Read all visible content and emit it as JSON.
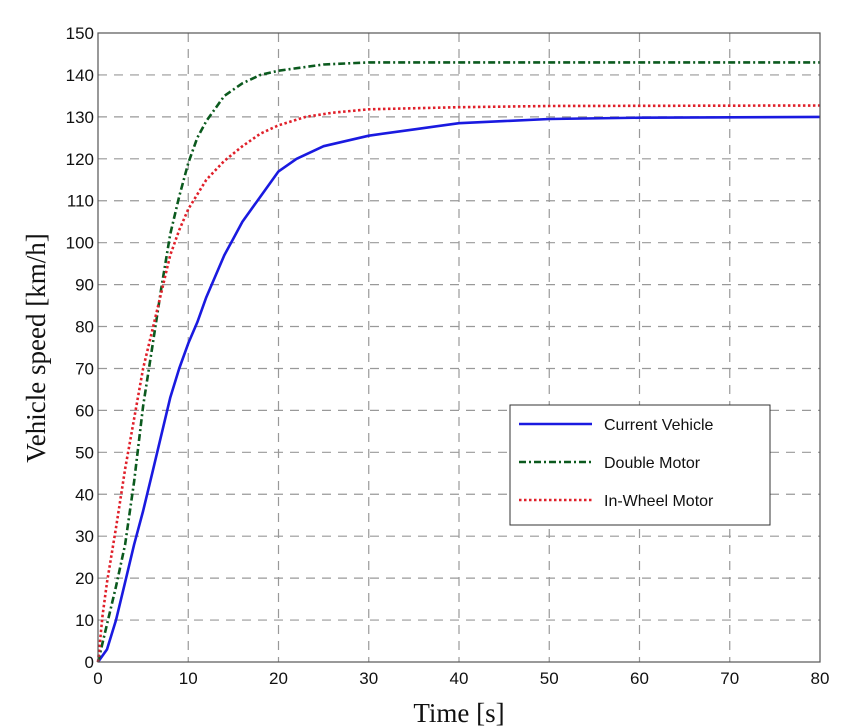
{
  "chart_data": {
    "type": "line",
    "title": "",
    "xlabel": "Time [s]",
    "ylabel": "Vehicle speed [km/h]",
    "xlim": [
      0,
      80
    ],
    "ylim": [
      0,
      150
    ],
    "xticks": [
      0,
      10,
      20,
      30,
      40,
      50,
      60,
      70,
      80
    ],
    "yticks": [
      0,
      10,
      20,
      30,
      40,
      50,
      60,
      70,
      80,
      90,
      100,
      110,
      120,
      130,
      140,
      150
    ],
    "grid": true,
    "legend_position": "center-right",
    "series": [
      {
        "name": "Current Vehicle",
        "color": "#1a1ae0",
        "style": "solid",
        "x": [
          0,
          1,
          2,
          3,
          4,
          5,
          6,
          7,
          8,
          9,
          10,
          11,
          12,
          13,
          14,
          15,
          16,
          18,
          20,
          22,
          25,
          30,
          35,
          40,
          45,
          50,
          60,
          80
        ],
        "y": [
          0,
          3,
          10,
          19,
          28,
          36,
          45,
          54,
          63,
          70,
          76,
          81,
          87,
          92,
          97,
          101,
          105,
          111,
          117,
          120,
          123,
          125.5,
          127,
          128.5,
          129,
          129.5,
          129.8,
          130
        ]
      },
      {
        "name": "Double Motor",
        "color": "#0b5a1e",
        "style": "dashdot",
        "x": [
          0,
          1,
          2,
          3,
          4,
          5,
          6,
          7,
          8,
          9,
          10,
          11,
          12,
          13,
          14,
          16,
          18,
          20,
          25,
          30,
          80
        ],
        "y": [
          0,
          9,
          18,
          28,
          43,
          61,
          75,
          89,
          102,
          111,
          119,
          125,
          129,
          132,
          135,
          138,
          140,
          141,
          142.5,
          143,
          143
        ]
      },
      {
        "name": "In-Wheel Motor",
        "color": "#e0202a",
        "style": "dotted",
        "x": [
          0,
          0.5,
          1,
          2,
          3,
          4,
          5,
          6,
          7,
          8,
          9,
          10,
          12,
          14,
          16,
          18,
          20,
          23,
          26,
          30,
          40,
          50,
          80
        ],
        "y": [
          0,
          11,
          19,
          32,
          46,
          58,
          70,
          79,
          88,
          97,
          103,
          108,
          115,
          119.5,
          123,
          126,
          128,
          130,
          131,
          131.8,
          132.3,
          132.6,
          132.7
        ]
      }
    ]
  }
}
